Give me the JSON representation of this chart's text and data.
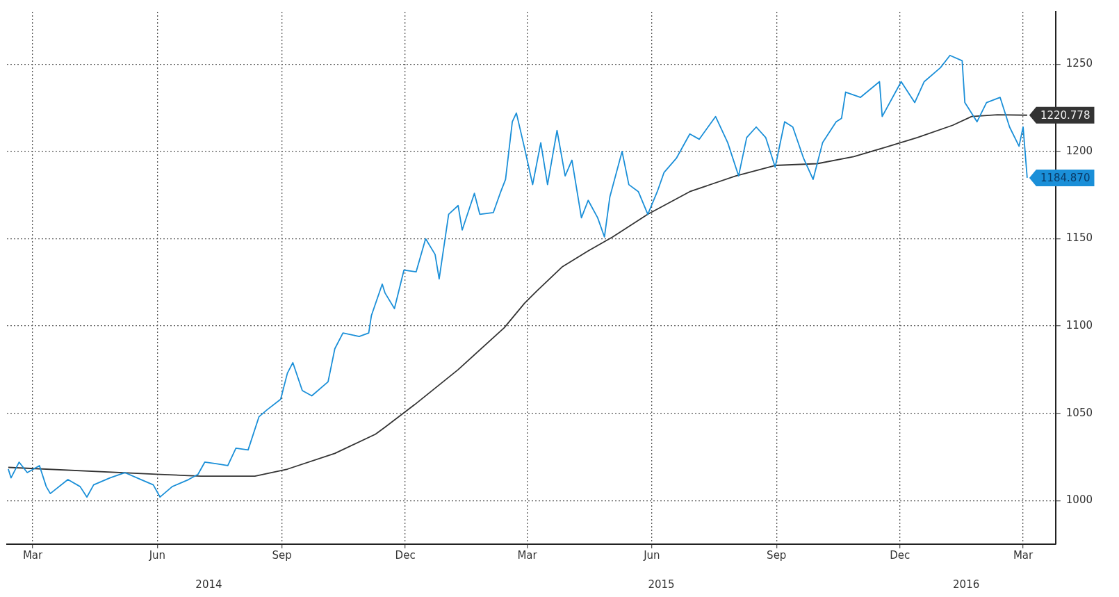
{
  "chart_data": {
    "type": "line",
    "grid": true,
    "xlim": [
      "2014-02-10",
      "2016-03-25"
    ],
    "xticks": [
      {
        "value": "2014-03-01",
        "label": "Mar"
      },
      {
        "value": "2014-06-01",
        "label": "Jun"
      },
      {
        "value": "2014-09-01",
        "label": "Sep"
      },
      {
        "value": "2014-12-01",
        "label": "Dec"
      },
      {
        "value": "2015-03-01",
        "label": "Mar"
      },
      {
        "value": "2015-06-01",
        "label": "Jun"
      },
      {
        "value": "2015-09-01",
        "label": "Sep"
      },
      {
        "value": "2015-12-01",
        "label": "Dec"
      },
      {
        "value": "2016-03-01",
        "label": "Mar"
      }
    ],
    "x2lim": [
      "2014-02-10",
      "2016-03-25"
    ],
    "x2ticks": [
      {
        "value": "2014-07-09",
        "label": "2014"
      },
      {
        "value": "2015-06-08",
        "label": "2015"
      },
      {
        "value": "2016-01-19",
        "label": "2016"
      }
    ],
    "ylim": [
      975,
      1280
    ],
    "yticks": [
      1000,
      1050,
      1100,
      1150,
      1200,
      1250
    ],
    "series": [
      {
        "color": "#1a8fd8",
        "x": [
          "2014-02-11",
          "2014-02-13",
          "2014-02-19",
          "2014-02-25",
          "2014-03-06",
          "2014-03-11",
          "2014-03-14",
          "2014-03-27",
          "2014-04-05",
          "2014-04-10",
          "2014-04-15",
          "2014-04-27",
          "2014-05-08",
          "2014-05-20",
          "2014-05-29",
          "2014-06-03",
          "2014-06-12",
          "2014-06-24",
          "2014-07-01",
          "2014-07-06",
          "2014-07-15",
          "2014-07-23",
          "2014-07-29",
          "2014-08-07",
          "2014-08-15",
          "2014-08-21",
          "2014-08-31",
          "2014-09-05",
          "2014-09-09",
          "2014-09-16",
          "2014-09-23",
          "2014-10-05",
          "2014-10-10",
          "2014-10-16",
          "2014-10-28",
          "2014-11-04",
          "2014-11-06",
          "2014-11-14",
          "2014-11-16",
          "2014-11-23",
          "2014-11-30",
          "2014-12-09",
          "2014-12-16",
          "2014-12-23",
          "2014-12-26",
          "2015-01-02",
          "2015-01-09",
          "2015-01-12",
          "2015-01-21",
          "2015-01-25",
          "2015-02-04",
          "2015-02-09",
          "2015-02-13",
          "2015-02-18",
          "2015-02-21",
          "2015-02-27",
          "2015-03-05",
          "2015-03-11",
          "2015-03-16",
          "2015-03-23",
          "2015-03-29",
          "2015-04-03",
          "2015-04-10",
          "2015-04-15",
          "2015-04-22",
          "2015-04-27",
          "2015-05-01",
          "2015-05-10",
          "2015-05-15",
          "2015-05-22",
          "2015-05-29",
          "2015-06-05",
          "2015-06-10",
          "2015-06-19",
          "2015-06-29",
          "2015-07-06",
          "2015-07-18",
          "2015-07-27",
          "2015-08-04",
          "2015-08-10",
          "2015-08-17",
          "2015-08-24",
          "2015-08-31",
          "2015-09-07",
          "2015-09-13",
          "2015-09-21",
          "2015-09-28",
          "2015-10-05",
          "2015-10-15",
          "2015-10-19",
          "2015-10-22",
          "2015-11-02",
          "2015-11-16",
          "2015-11-18",
          "2015-12-02",
          "2015-12-12",
          "2015-12-19",
          "2015-12-31",
          "2016-01-07",
          "2016-01-16",
          "2016-01-18",
          "2016-01-27",
          "2016-02-03",
          "2016-02-13",
          "2016-02-20",
          "2016-02-27",
          "2016-03-01",
          "2016-03-04"
        ],
        "values": [
          1018,
          1013,
          1022,
          1016,
          1020,
          1008,
          1004,
          1012,
          1008,
          1002,
          1009,
          1013,
          1016,
          1012,
          1009,
          1002,
          1008,
          1012,
          1015,
          1022,
          1021,
          1020,
          1030,
          1029,
          1048,
          1052,
          1058,
          1073,
          1079,
          1063,
          1060,
          1068,
          1087,
          1096,
          1094,
          1096,
          1106,
          1124,
          1119,
          1110,
          1132,
          1131,
          1150,
          1141,
          1127,
          1164,
          1169,
          1155,
          1176,
          1164,
          1165,
          1176,
          1184,
          1217,
          1222,
          1202,
          1181,
          1205,
          1181,
          1212,
          1186,
          1195,
          1162,
          1172,
          1162,
          1151,
          1174,
          1200,
          1181,
          1177,
          1164,
          1177,
          1188,
          1196,
          1210,
          1207,
          1220,
          1205,
          1186,
          1208,
          1214,
          1208,
          1191,
          1217,
          1214,
          1196,
          1184,
          1205,
          1217,
          1219,
          1234,
          1231,
          1240,
          1220,
          1240,
          1228,
          1240,
          1248,
          1255,
          1252,
          1228,
          1217,
          1228,
          1231,
          1214,
          1203,
          1214,
          1184.87
        ],
        "value_labels": [
          null,
          null,
          null,
          null,
          null,
          null,
          null,
          null,
          null,
          null,
          null,
          null,
          null,
          null,
          null,
          null,
          null,
          null,
          null,
          null,
          null,
          null,
          null,
          null,
          null,
          null,
          null,
          null,
          null,
          null,
          null,
          null,
          null,
          null,
          null,
          null,
          null,
          null,
          null,
          null,
          null,
          null,
          null,
          null,
          null,
          null,
          null,
          null,
          null,
          null,
          null,
          null,
          null,
          null,
          null,
          null,
          null,
          null,
          null,
          null,
          null,
          null,
          null,
          null,
          null,
          null,
          null,
          null,
          null,
          null,
          null,
          null,
          null,
          null,
          null,
          null,
          null,
          null,
          null,
          null,
          null,
          null,
          null,
          null,
          null,
          null,
          null,
          null,
          null,
          null,
          null,
          null,
          null,
          null,
          null,
          null,
          null,
          null,
          null,
          null,
          null,
          null,
          null,
          null,
          null,
          null,
          null,
          "1184.870"
        ]
      },
      {
        "color": "#333333",
        "x": [
          "2014-02-11",
          "2014-06-03",
          "2014-07-03",
          "2014-08-12",
          "2014-09-05",
          "2014-10-10",
          "2014-11-09",
          "2014-11-16",
          "2014-12-08",
          "2015-01-09",
          "2015-02-12",
          "2015-02-27",
          "2015-03-08",
          "2015-03-27",
          "2015-04-15",
          "2015-05-03",
          "2015-05-29",
          "2015-06-29",
          "2015-08-02",
          "2015-08-31",
          "2015-10-01",
          "2015-10-28",
          "2015-11-23",
          "2015-12-14",
          "2016-01-09",
          "2016-01-23",
          "2016-02-11",
          "2016-03-04"
        ],
        "values": [
          1019,
          1015,
          1014,
          1014,
          1018,
          1027,
          1038,
          1042,
          1055,
          1075,
          1099,
          1113,
          1120,
          1134,
          1143,
          1151,
          1164,
          1177,
          1186,
          1192,
          1193,
          1197,
          1203,
          1208,
          1215,
          1220,
          1221,
          1220.778
        ],
        "value_labels": [
          null,
          null,
          null,
          null,
          null,
          null,
          null,
          null,
          null,
          null,
          null,
          null,
          null,
          null,
          null,
          null,
          null,
          null,
          null,
          null,
          null,
          null,
          null,
          null,
          null,
          null,
          null,
          "1220.778"
        ]
      }
    ]
  }
}
